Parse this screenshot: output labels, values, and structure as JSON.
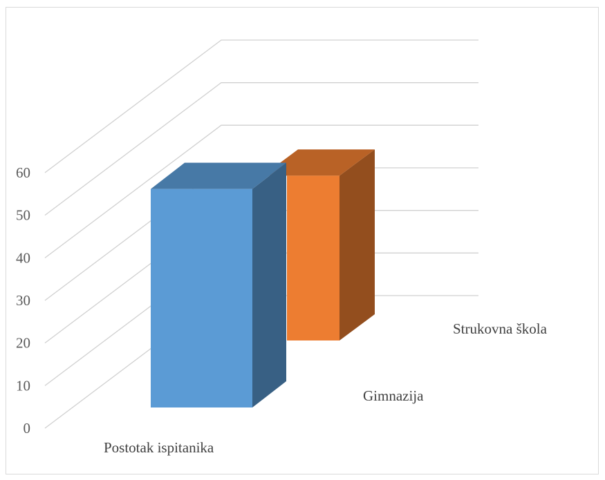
{
  "chart_data": {
    "type": "bar",
    "title": "",
    "xlabel": "",
    "ylabel": "",
    "ylim": [
      0,
      60
    ],
    "yticks": [
      0,
      10,
      20,
      30,
      40,
      50,
      60
    ],
    "grid": true,
    "categories": [
      "Postotak ispitanika"
    ],
    "series": [
      {
        "name": "Gimnazija",
        "values": [
          57
        ],
        "color": "#5b9bd5"
      },
      {
        "name": "Strukovna škola",
        "values": [
          43
        ],
        "color": "#ed7d31"
      }
    ]
  }
}
